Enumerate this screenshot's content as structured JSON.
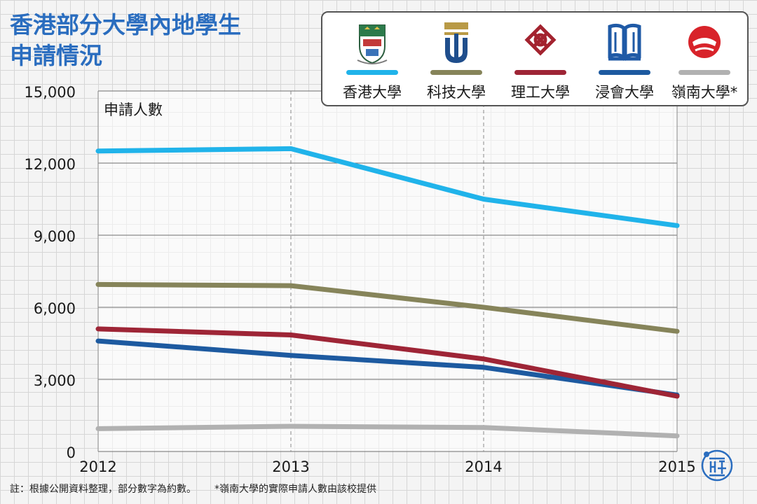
{
  "title_lines": [
    "香港部分大學內地學生",
    "申請情況"
  ],
  "footnote": {
    "left": "註：根據公開資料整理，部分數字為約數。",
    "right": "*嶺南大學的實際申請人數由該校提供"
  },
  "legend": [
    {
      "label": "香港大學",
      "color": "#20b3ea",
      "icon": "hku-crest-icon"
    },
    {
      "label": "科技大學",
      "color": "#86845a",
      "icon": "hkust-logo-icon"
    },
    {
      "label": "理工大學",
      "color": "#9e2536",
      "icon": "polyu-knot-icon"
    },
    {
      "label": "浸會大學",
      "color": "#1d5aa0",
      "icon": "hkbu-book-icon"
    },
    {
      "label": "嶺南大學*",
      "color": "#b1b1b1",
      "icon": "lingnan-seal-icon"
    }
  ],
  "chart_data": {
    "type": "line",
    "x": [
      "2012",
      "2013",
      "2014",
      "2015"
    ],
    "ylabel": "申請人數",
    "ylim": [
      0,
      15000
    ],
    "yticks": [
      0,
      3000,
      6000,
      9000,
      12000,
      15000
    ],
    "ytick_labels": [
      "0",
      "3,000",
      "6,000",
      "9,000",
      "12,000",
      "15,000"
    ],
    "series": [
      {
        "name": "香港大學",
        "color": "#20b3ea",
        "values": [
          12500,
          12600,
          10500,
          9400
        ]
      },
      {
        "name": "科技大學",
        "color": "#86845a",
        "values": [
          6950,
          6900,
          6000,
          5000
        ]
      },
      {
        "name": "理工大學",
        "color": "#9e2536",
        "values": [
          5100,
          4850,
          3850,
          2300
        ]
      },
      {
        "name": "浸會大學",
        "color": "#1d5aa0",
        "values": [
          4600,
          4000,
          3500,
          2350
        ]
      },
      {
        "name": "嶺南大學*",
        "color": "#b1b1b1",
        "values": [
          950,
          1050,
          1000,
          650
        ]
      }
    ]
  }
}
